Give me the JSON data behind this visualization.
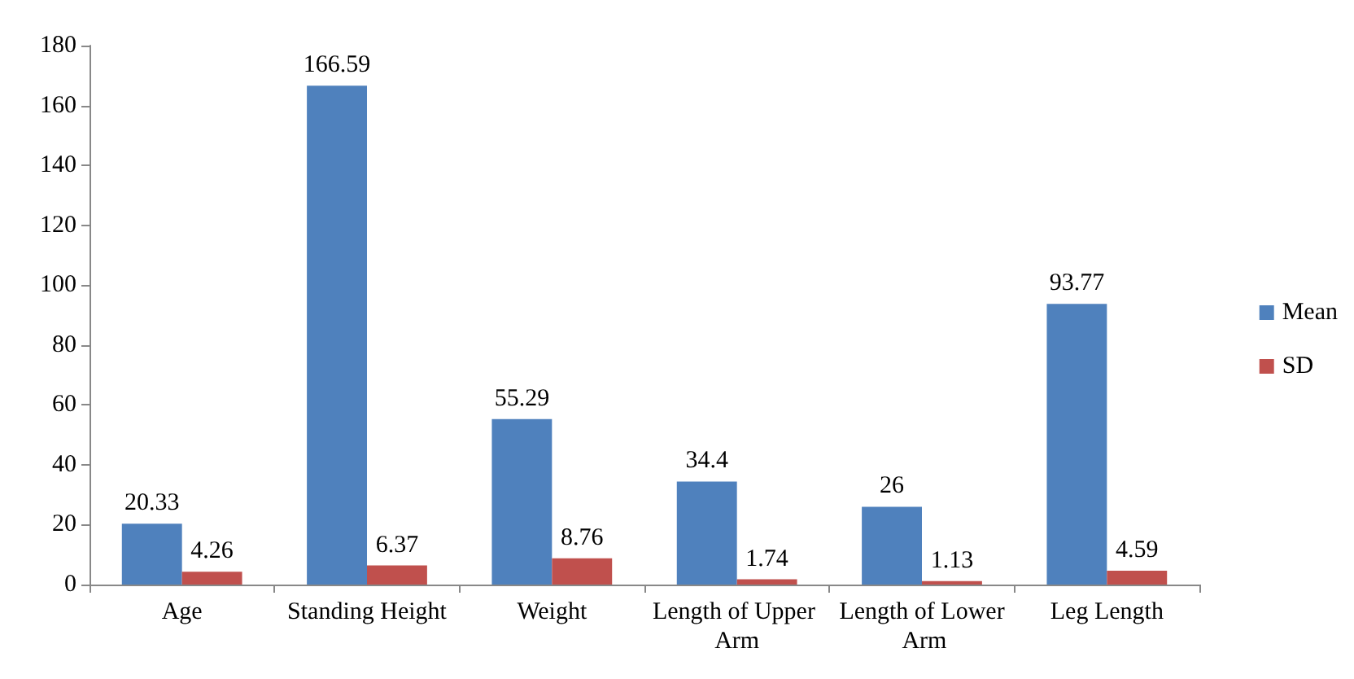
{
  "chart_data": {
    "type": "bar",
    "categories": [
      "Age",
      "Standing Height",
      "Weight",
      "Length of Upper Arm",
      "Length of Lower Arm",
      "Leg Length"
    ],
    "series": [
      {
        "name": "Mean",
        "color": "#4f81bd",
        "values": [
          20.33,
          166.59,
          55.29,
          34.4,
          26,
          93.77
        ]
      },
      {
        "name": "SD",
        "color": "#c0504d",
        "values": [
          4.26,
          6.37,
          8.76,
          1.74,
          1.13,
          4.59
        ]
      }
    ],
    "ylim": [
      0,
      180
    ],
    "yticks": [
      0,
      20,
      40,
      60,
      80,
      100,
      120,
      140,
      160,
      180
    ],
    "grid": false,
    "legend": "right",
    "data_labels": true
  }
}
